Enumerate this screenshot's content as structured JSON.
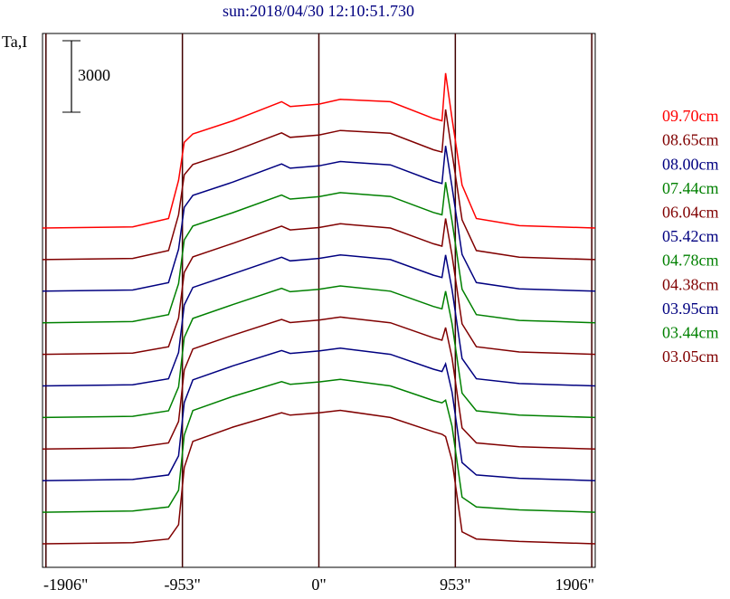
{
  "chart_data": {
    "type": "line",
    "title": "sun:2018/04/30 12:10:51.730",
    "y_label": "Ta,I",
    "scale_bar": 3000,
    "xlim": [
      -1930,
      1930
    ],
    "xticks": [
      {
        "value": -1906,
        "label": "-1906\""
      },
      {
        "value": -953,
        "label": "-953\""
      },
      {
        "value": 0,
        "label": "0\""
      },
      {
        "value": 953,
        "label": "953\""
      },
      {
        "value": 1906,
        "label": "1906\""
      }
    ],
    "x": [
      -1930,
      -1300,
      -1050,
      -980,
      -940,
      -880,
      -600,
      -260,
      -200,
      0,
      150,
      500,
      800,
      860,
      885,
      930,
      1000,
      1100,
      1400,
      1930
    ],
    "series": [
      {
        "name": "09.70cm",
        "color": "#ff0000",
        "values": [
          0,
          50,
          400,
          2000,
          3600,
          3950,
          4500,
          5300,
          5100,
          5200,
          5400,
          5300,
          4600,
          4500,
          6500,
          4600,
          1800,
          400,
          100,
          0
        ]
      },
      {
        "name": "08.65cm",
        "color": "#800000",
        "values": [
          0,
          50,
          380,
          1880,
          3560,
          3990,
          4540,
          5320,
          5130,
          5230,
          5420,
          5300,
          4610,
          4510,
          6300,
          4490,
          1670,
          380,
          100,
          0
        ]
      },
      {
        "name": "08.00cm",
        "color": "#000080",
        "values": [
          0,
          50,
          360,
          1760,
          3520,
          4020,
          4580,
          5340,
          5160,
          5260,
          5440,
          5300,
          4620,
          4520,
          6100,
          4380,
          1540,
          360,
          100,
          0
        ]
      },
      {
        "name": "07.44cm",
        "color": "#008000",
        "values": [
          0,
          50,
          340,
          1640,
          3480,
          4060,
          4620,
          5360,
          5190,
          5290,
          5460,
          5300,
          4630,
          4530,
          5900,
          4270,
          1410,
          340,
          100,
          0
        ]
      },
      {
        "name": "06.04cm",
        "color": "#800000",
        "values": [
          0,
          50,
          320,
          1520,
          3440,
          4090,
          4660,
          5380,
          5220,
          5320,
          5480,
          5300,
          4640,
          4540,
          5700,
          4160,
          1280,
          320,
          100,
          0
        ]
      },
      {
        "name": "05.42cm",
        "color": "#000080",
        "values": [
          0,
          50,
          300,
          1400,
          3400,
          4130,
          4700,
          5400,
          5250,
          5350,
          5500,
          5300,
          4650,
          4550,
          5500,
          4050,
          1150,
          300,
          100,
          0
        ]
      },
      {
        "name": "04.78cm",
        "color": "#008000",
        "values": [
          0,
          50,
          280,
          1280,
          3360,
          4160,
          4740,
          5420,
          5280,
          5380,
          5520,
          5300,
          4660,
          4560,
          5300,
          3940,
          1020,
          280,
          100,
          0
        ]
      },
      {
        "name": "04.38cm",
        "color": "#800000",
        "values": [
          0,
          50,
          260,
          1160,
          3320,
          4200,
          4780,
          5440,
          5310,
          5410,
          5540,
          5300,
          4670,
          4570,
          5100,
          3830,
          890,
          260,
          100,
          0
        ]
      },
      {
        "name": "03.95cm",
        "color": "#000080",
        "values": [
          0,
          50,
          240,
          1040,
          3280,
          4230,
          4820,
          5460,
          5340,
          5440,
          5560,
          5300,
          4680,
          4580,
          4900,
          3720,
          760,
          240,
          100,
          0
        ]
      },
      {
        "name": "03.44cm",
        "color": "#008000",
        "values": [
          0,
          50,
          220,
          920,
          3240,
          4270,
          4860,
          5480,
          5370,
          5470,
          5580,
          5300,
          4690,
          4590,
          4700,
          3610,
          630,
          220,
          100,
          0
        ]
      },
      {
        "name": "03.05cm",
        "color": "#800000",
        "values": [
          0,
          50,
          200,
          800,
          3200,
          4300,
          4900,
          5500,
          5400,
          5500,
          5600,
          5300,
          4700,
          4600,
          4500,
          3500,
          500,
          200,
          100,
          0
        ]
      }
    ]
  }
}
